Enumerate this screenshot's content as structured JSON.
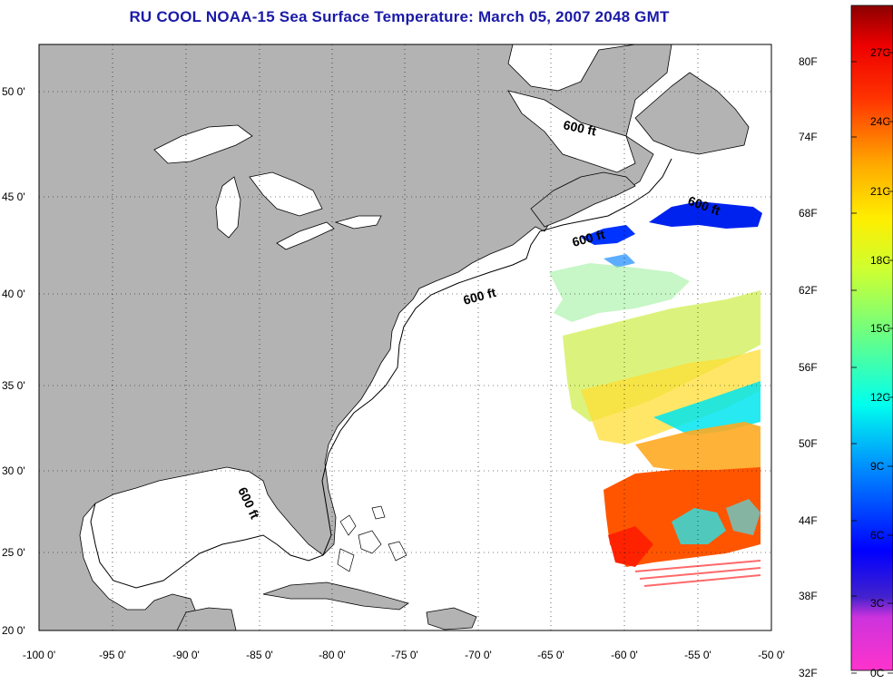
{
  "title": "RU COOL  NOAA-15  Sea Surface Temperature:  March 05, 2007 2048 GMT",
  "lat_ticks": [
    "20 0'",
    "25 0'",
    "30 0'",
    "35 0'",
    "40 0'",
    "45 0'",
    "50 0'"
  ],
  "lon_ticks": [
    "-100 0'",
    "-95 0'",
    "-90 0'",
    "-85 0'",
    "-80 0'",
    "-75 0'",
    "-70 0'",
    "-65 0'",
    "-60 0'",
    "-55 0'",
    "-50 0'"
  ],
  "contour_label": "600 ft",
  "colorbar": {
    "fahrenheit": [
      "80F",
      "74F",
      "68F",
      "62F",
      "56F",
      "50F",
      "44F",
      "38F",
      "32F"
    ],
    "celsius": [
      "27C",
      "24C",
      "21C",
      "18C",
      "15C",
      "12C",
      "9C",
      "6C",
      "3C",
      "0C"
    ],
    "colors": [
      "#ff33cc",
      "#9933cc",
      "#0000ff",
      "#00aaff",
      "#00ffee",
      "#66ff66",
      "#ffff00",
      "#ffaa00",
      "#ff3300",
      "#cc0000",
      "#8b0000"
    ]
  },
  "colors": {
    "land": "#b3b3b3",
    "ocean": "#ffffff",
    "title": "#1a1aa8"
  }
}
